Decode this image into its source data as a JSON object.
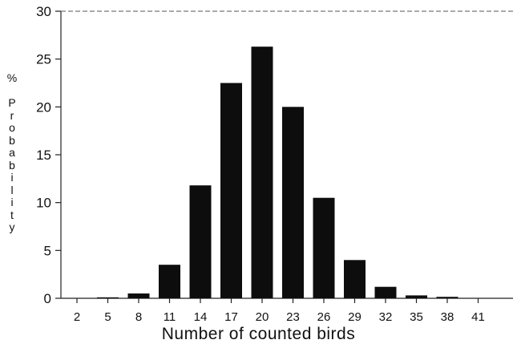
{
  "chart_data": {
    "type": "bar",
    "categories": [
      "2",
      "5",
      "8",
      "11",
      "14",
      "17",
      "20",
      "23",
      "26",
      "29",
      "32",
      "35",
      "38",
      "41"
    ],
    "values": [
      0,
      0.1,
      0.5,
      3.5,
      11.8,
      22.5,
      26.3,
      20.0,
      10.5,
      4.0,
      1.2,
      0.3,
      0.15,
      0
    ],
    "title": "",
    "xlabel": "Number of counted birds",
    "ylabel": "% Probability",
    "ylim": [
      0,
      30
    ],
    "yticks": [
      "0",
      "5",
      "10",
      "15",
      "20",
      "25",
      "30"
    ],
    "grid": false,
    "bar_color": "#0d0d0d"
  }
}
